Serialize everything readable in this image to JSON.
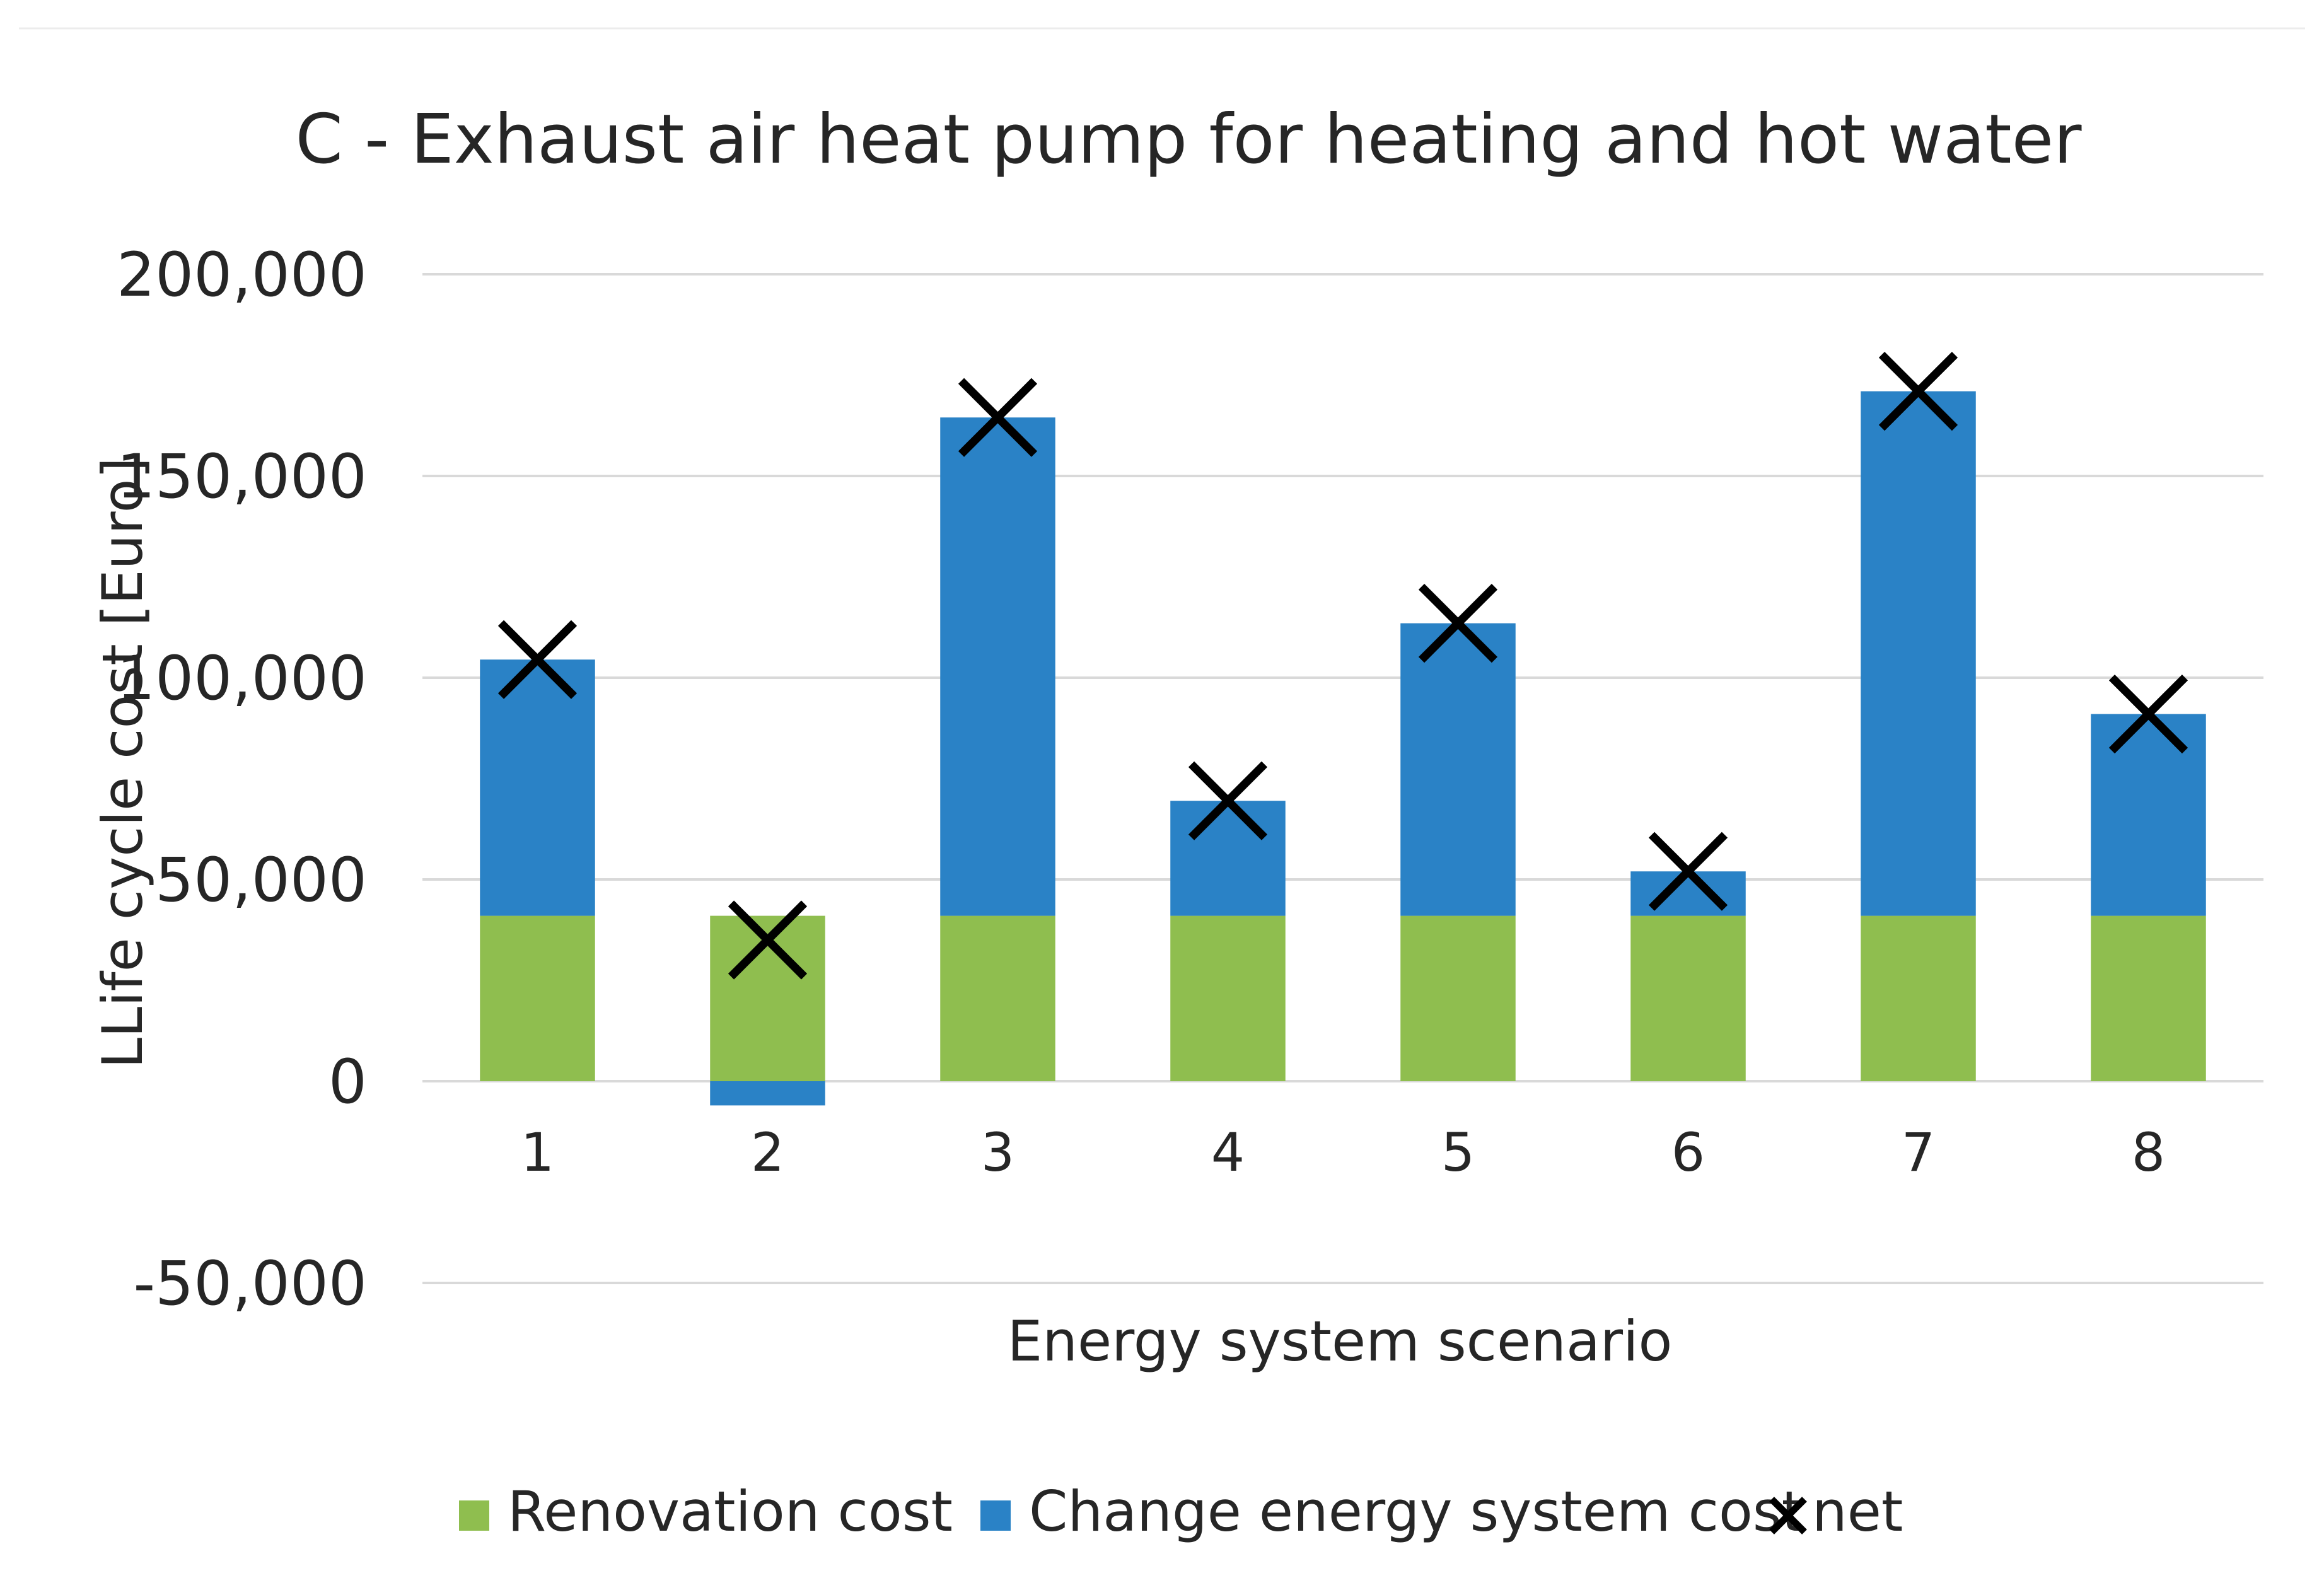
{
  "chart_data": {
    "type": "bar",
    "stacked": true,
    "title": "C - Exhaust air heat pump for heating and hot water",
    "xlabel": "Energy system scenario",
    "ylabel": "LLife cycle cost [Euro]",
    "categories": [
      "1",
      "2",
      "3",
      "4",
      "5",
      "6",
      "7",
      "8"
    ],
    "ylim": [
      -50000,
      200000
    ],
    "yticks": [
      -50000,
      0,
      50000,
      100000,
      150000,
      200000
    ],
    "ytick_labels": [
      "-50,000",
      "0",
      "50,000",
      "100,000",
      "150,000",
      "200,000"
    ],
    "grid": true,
    "legend_position": "bottom",
    "series": [
      {
        "name": "Renovation cost",
        "kind": "bar",
        "color": "#8fbe4f",
        "values": [
          41000,
          41000,
          41000,
          41000,
          41000,
          41000,
          41000,
          41000
        ]
      },
      {
        "name": "Change energy system cost",
        "kind": "bar",
        "color": "#2a82c6",
        "values": [
          63500,
          -6000,
          123500,
          28500,
          72500,
          11000,
          130000,
          50000
        ]
      },
      {
        "name": "net",
        "kind": "marker",
        "marker": "x",
        "color": "#000000",
        "values": [
          104500,
          35000,
          164500,
          69500,
          113500,
          52000,
          171000,
          91000
        ]
      }
    ],
    "colors": {
      "grid": "#d9d9d9",
      "text": "#262626",
      "background": "#ffffff"
    }
  }
}
